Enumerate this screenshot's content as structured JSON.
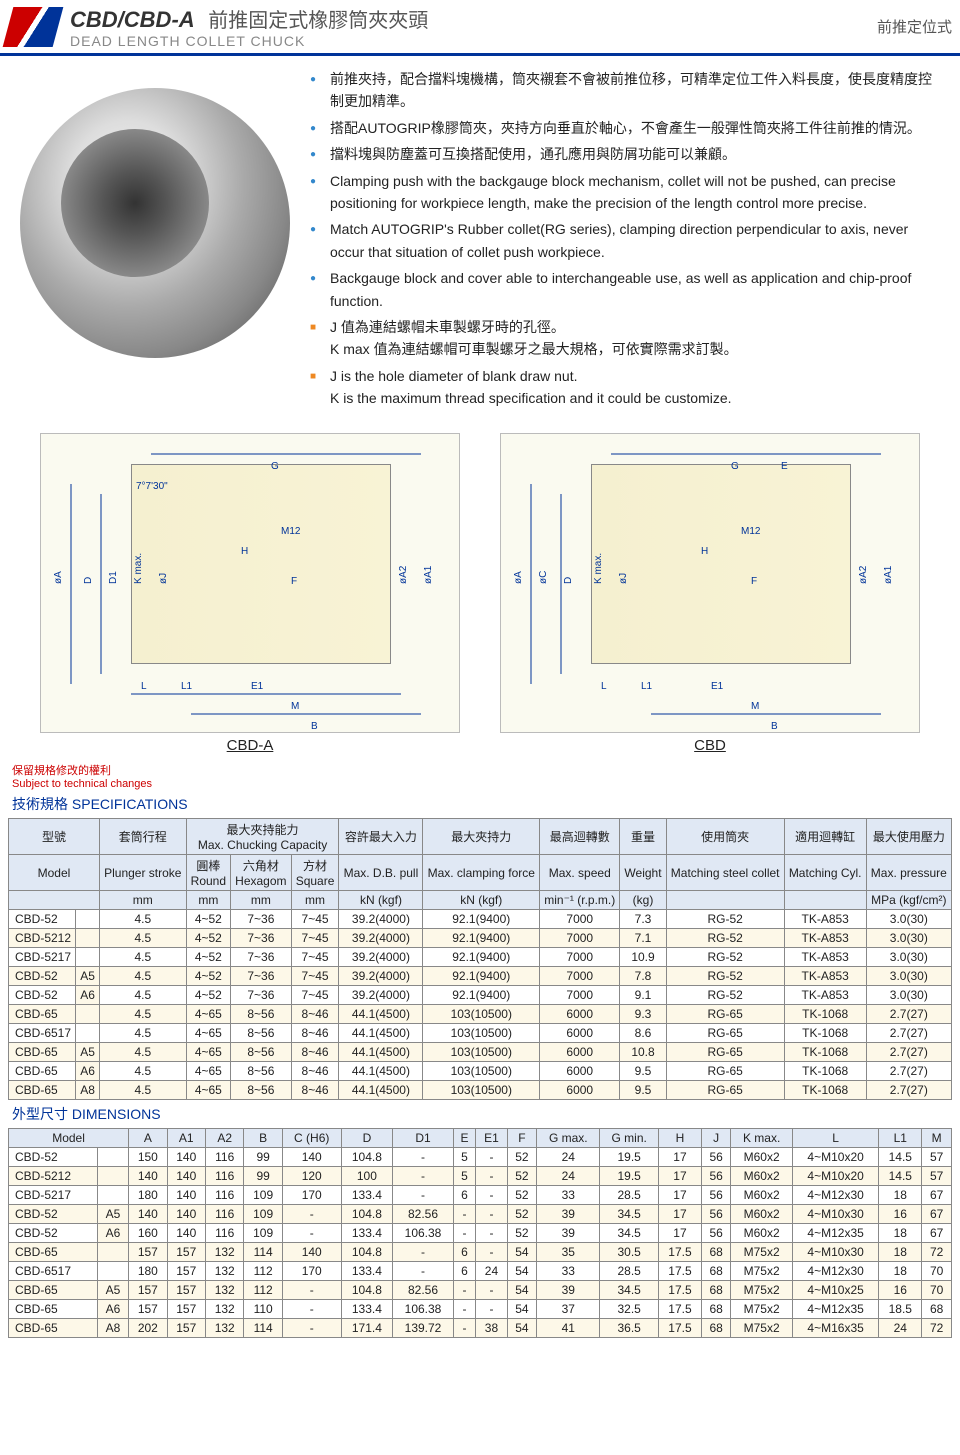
{
  "header": {
    "title": "CBD/CBD-A",
    "title_cn": "前推固定式橡膠筒夾夾頭",
    "subtitle": "DEAD LENGTH COLLET CHUCK",
    "right": "前推定位式"
  },
  "bullets_blue_cn": [
    "前推夾持，配合擋料塊機構，筒夾襯套不會被前推位移，可精準定位工件入料長度，使長度精度控制更加精準。",
    "搭配AUTOGRIP橡膠筒夾，夾持方向垂直於軸心，不會產生一般彈性筒夾將工件往前推的情況。",
    "擋料塊與防塵蓋可互換搭配使用，通孔應用與防屑功能可以兼顧。"
  ],
  "bullets_blue_en": [
    "Clamping push with the backgauge block mechanism, collet will not be pushed, can precise positioning for workpiece length, make the precision of the length control more precise.",
    "Match AUTOGRIP's Rubber collet(RG series), clamping direction perpendicular to axis, never occur that situation of collet push workpiece.",
    "Backgauge block and cover able to interchangeable use, as well as application and chip-proof function."
  ],
  "bullets_orange": [
    "J 值為連結螺帽未車製螺牙時的孔徑。\nK max 值為連結螺帽可車製螺牙之最大規格，可依實際需求訂製。",
    "J is the hole diameter of blank draw nut.\nK is the maximum thread specification and it could be customize."
  ],
  "diagram_labels": {
    "left": "CBD-A",
    "right": "CBD"
  },
  "diagram_dims": [
    "øA",
    "øC",
    "D",
    "D1",
    "K max.",
    "øJ",
    "H",
    "M12",
    "F",
    "G",
    "øA2",
    "øA1",
    "L",
    "L1",
    "E1",
    "M",
    "B",
    "E",
    "7°7'30\""
  ],
  "note_red_cn": "保留規格修改的權利",
  "note_red_en": "Subject to technical changes",
  "spec_title": "技術規格 SPECIFICATIONS",
  "dim_title": "外型尺寸 DIMENSIONS",
  "spec_hdr": {
    "r1": [
      "型號",
      "套筒行程",
      "最大夾持能力\nMax. Chucking Capacity",
      "容許最大入力",
      "最大夾持力",
      "最高迴轉數",
      "重量",
      "使用筒夾",
      "適用迴轉缸",
      "最大使用壓力"
    ],
    "r2": [
      "Model",
      "Plunger stroke",
      "圓棒\nRound",
      "六角材\nHexagom",
      "方材\nSquare",
      "Max. D.B. pull",
      "Max. clamping force",
      "Max. speed",
      "Weight",
      "Matching steel collet",
      "Matching Cyl.",
      "Max. pressure"
    ],
    "r3": [
      "",
      "mm",
      "mm",
      "mm",
      "mm",
      "kN (kgf)",
      "kN (kgf)",
      "min⁻¹ (r.p.m.)",
      "(kg)",
      "",
      "",
      "MPa (kgf/cm²)"
    ]
  },
  "spec_rows": [
    {
      "m": "CBD-52",
      "s": "",
      "d": [
        "4.5",
        "4~52",
        "7~36",
        "7~45",
        "39.2(4000)",
        "92.1(9400)",
        "7000",
        "7.3",
        "RG-52",
        "TK-A853",
        "3.0(30)"
      ]
    },
    {
      "m": "CBD-5212",
      "s": "",
      "d": [
        "4.5",
        "4~52",
        "7~36",
        "7~45",
        "39.2(4000)",
        "92.1(9400)",
        "7000",
        "7.1",
        "RG-52",
        "TK-A853",
        "3.0(30)"
      ]
    },
    {
      "m": "CBD-5217",
      "s": "",
      "d": [
        "4.5",
        "4~52",
        "7~36",
        "7~45",
        "39.2(4000)",
        "92.1(9400)",
        "7000",
        "10.9",
        "RG-52",
        "TK-A853",
        "3.0(30)"
      ]
    },
    {
      "m": "CBD-52",
      "s": "A5",
      "d": [
        "4.5",
        "4~52",
        "7~36",
        "7~45",
        "39.2(4000)",
        "92.1(9400)",
        "7000",
        "7.8",
        "RG-52",
        "TK-A853",
        "3.0(30)"
      ]
    },
    {
      "m": "CBD-52",
      "s": "A6",
      "d": [
        "4.5",
        "4~52",
        "7~36",
        "7~45",
        "39.2(4000)",
        "92.1(9400)",
        "7000",
        "9.1",
        "RG-52",
        "TK-A853",
        "3.0(30)"
      ]
    },
    {
      "m": "CBD-65",
      "s": "",
      "d": [
        "4.5",
        "4~65",
        "8~56",
        "8~46",
        "44.1(4500)",
        "103(10500)",
        "6000",
        "9.3",
        "RG-65",
        "TK-1068",
        "2.7(27)"
      ]
    },
    {
      "m": "CBD-6517",
      "s": "",
      "d": [
        "4.5",
        "4~65",
        "8~56",
        "8~46",
        "44.1(4500)",
        "103(10500)",
        "6000",
        "8.6",
        "RG-65",
        "TK-1068",
        "2.7(27)"
      ]
    },
    {
      "m": "CBD-65",
      "s": "A5",
      "d": [
        "4.5",
        "4~65",
        "8~56",
        "8~46",
        "44.1(4500)",
        "103(10500)",
        "6000",
        "10.8",
        "RG-65",
        "TK-1068",
        "2.7(27)"
      ]
    },
    {
      "m": "CBD-65",
      "s": "A6",
      "d": [
        "4.5",
        "4~65",
        "8~56",
        "8~46",
        "44.1(4500)",
        "103(10500)",
        "6000",
        "9.5",
        "RG-65",
        "TK-1068",
        "2.7(27)"
      ]
    },
    {
      "m": "CBD-65",
      "s": "A8",
      "d": [
        "4.5",
        "4~65",
        "8~56",
        "8~46",
        "44.1(4500)",
        "103(10500)",
        "6000",
        "9.5",
        "RG-65",
        "TK-1068",
        "2.7(27)"
      ]
    }
  ],
  "dim_hdr": [
    "Model",
    "A",
    "A1",
    "A2",
    "B",
    "C (H6)",
    "D",
    "D1",
    "E",
    "E1",
    "F",
    "G max.",
    "G min.",
    "H",
    "J",
    "K max.",
    "L",
    "L1",
    "M"
  ],
  "dim_rows": [
    {
      "m": "CBD-52",
      "s": "",
      "d": [
        "150",
        "140",
        "116",
        "99",
        "140",
        "104.8",
        "-",
        "5",
        "-",
        "52",
        "24",
        "19.5",
        "17",
        "56",
        "M60x2",
        "4~M10x20",
        "14.5",
        "57"
      ]
    },
    {
      "m": "CBD-5212",
      "s": "",
      "d": [
        "140",
        "140",
        "116",
        "99",
        "120",
        "100",
        "-",
        "5",
        "-",
        "52",
        "24",
        "19.5",
        "17",
        "56",
        "M60x2",
        "4~M10x20",
        "14.5",
        "57"
      ]
    },
    {
      "m": "CBD-5217",
      "s": "",
      "d": [
        "180",
        "140",
        "116",
        "109",
        "170",
        "133.4",
        "-",
        "6",
        "-",
        "52",
        "33",
        "28.5",
        "17",
        "56",
        "M60x2",
        "4~M12x30",
        "18",
        "67"
      ]
    },
    {
      "m": "CBD-52",
      "s": "A5",
      "d": [
        "140",
        "140",
        "116",
        "109",
        "-",
        "104.8",
        "82.56",
        "-",
        "-",
        "52",
        "39",
        "34.5",
        "17",
        "56",
        "M60x2",
        "4~M10x30",
        "16",
        "67"
      ]
    },
    {
      "m": "CBD-52",
      "s": "A6",
      "d": [
        "160",
        "140",
        "116",
        "109",
        "-",
        "133.4",
        "106.38",
        "-",
        "-",
        "52",
        "39",
        "34.5",
        "17",
        "56",
        "M60x2",
        "4~M12x35",
        "18",
        "67"
      ]
    },
    {
      "m": "CBD-65",
      "s": "",
      "d": [
        "157",
        "157",
        "132",
        "114",
        "140",
        "104.8",
        "-",
        "6",
        "-",
        "54",
        "35",
        "30.5",
        "17.5",
        "68",
        "M75x2",
        "4~M10x30",
        "18",
        "72"
      ]
    },
    {
      "m": "CBD-6517",
      "s": "",
      "d": [
        "180",
        "157",
        "132",
        "112",
        "170",
        "133.4",
        "-",
        "6",
        "24",
        "54",
        "33",
        "28.5",
        "17.5",
        "68",
        "M75x2",
        "4~M12x30",
        "18",
        "70"
      ]
    },
    {
      "m": "CBD-65",
      "s": "A5",
      "d": [
        "157",
        "157",
        "132",
        "112",
        "-",
        "104.8",
        "82.56",
        "-",
        "-",
        "54",
        "39",
        "34.5",
        "17.5",
        "68",
        "M75x2",
        "4~M10x25",
        "16",
        "70"
      ]
    },
    {
      "m": "CBD-65",
      "s": "A6",
      "d": [
        "157",
        "157",
        "132",
        "110",
        "-",
        "133.4",
        "106.38",
        "-",
        "-",
        "54",
        "37",
        "32.5",
        "17.5",
        "68",
        "M75x2",
        "4~M12x35",
        "18.5",
        "68"
      ]
    },
    {
      "m": "CBD-65",
      "s": "A8",
      "d": [
        "202",
        "157",
        "132",
        "114",
        "-",
        "171.4",
        "139.72",
        "-",
        "38",
        "54",
        "41",
        "36.5",
        "17.5",
        "68",
        "M75x2",
        "4~M16x35",
        "24",
        "72"
      ]
    }
  ],
  "colors": {
    "header_blue": "#003399",
    "bullet_blue": "#3388cc",
    "bullet_orange": "#ee8822",
    "note_red": "#cc0000",
    "th_bg": "#e0e8f4",
    "alt_bg": "#fdf8e8"
  }
}
